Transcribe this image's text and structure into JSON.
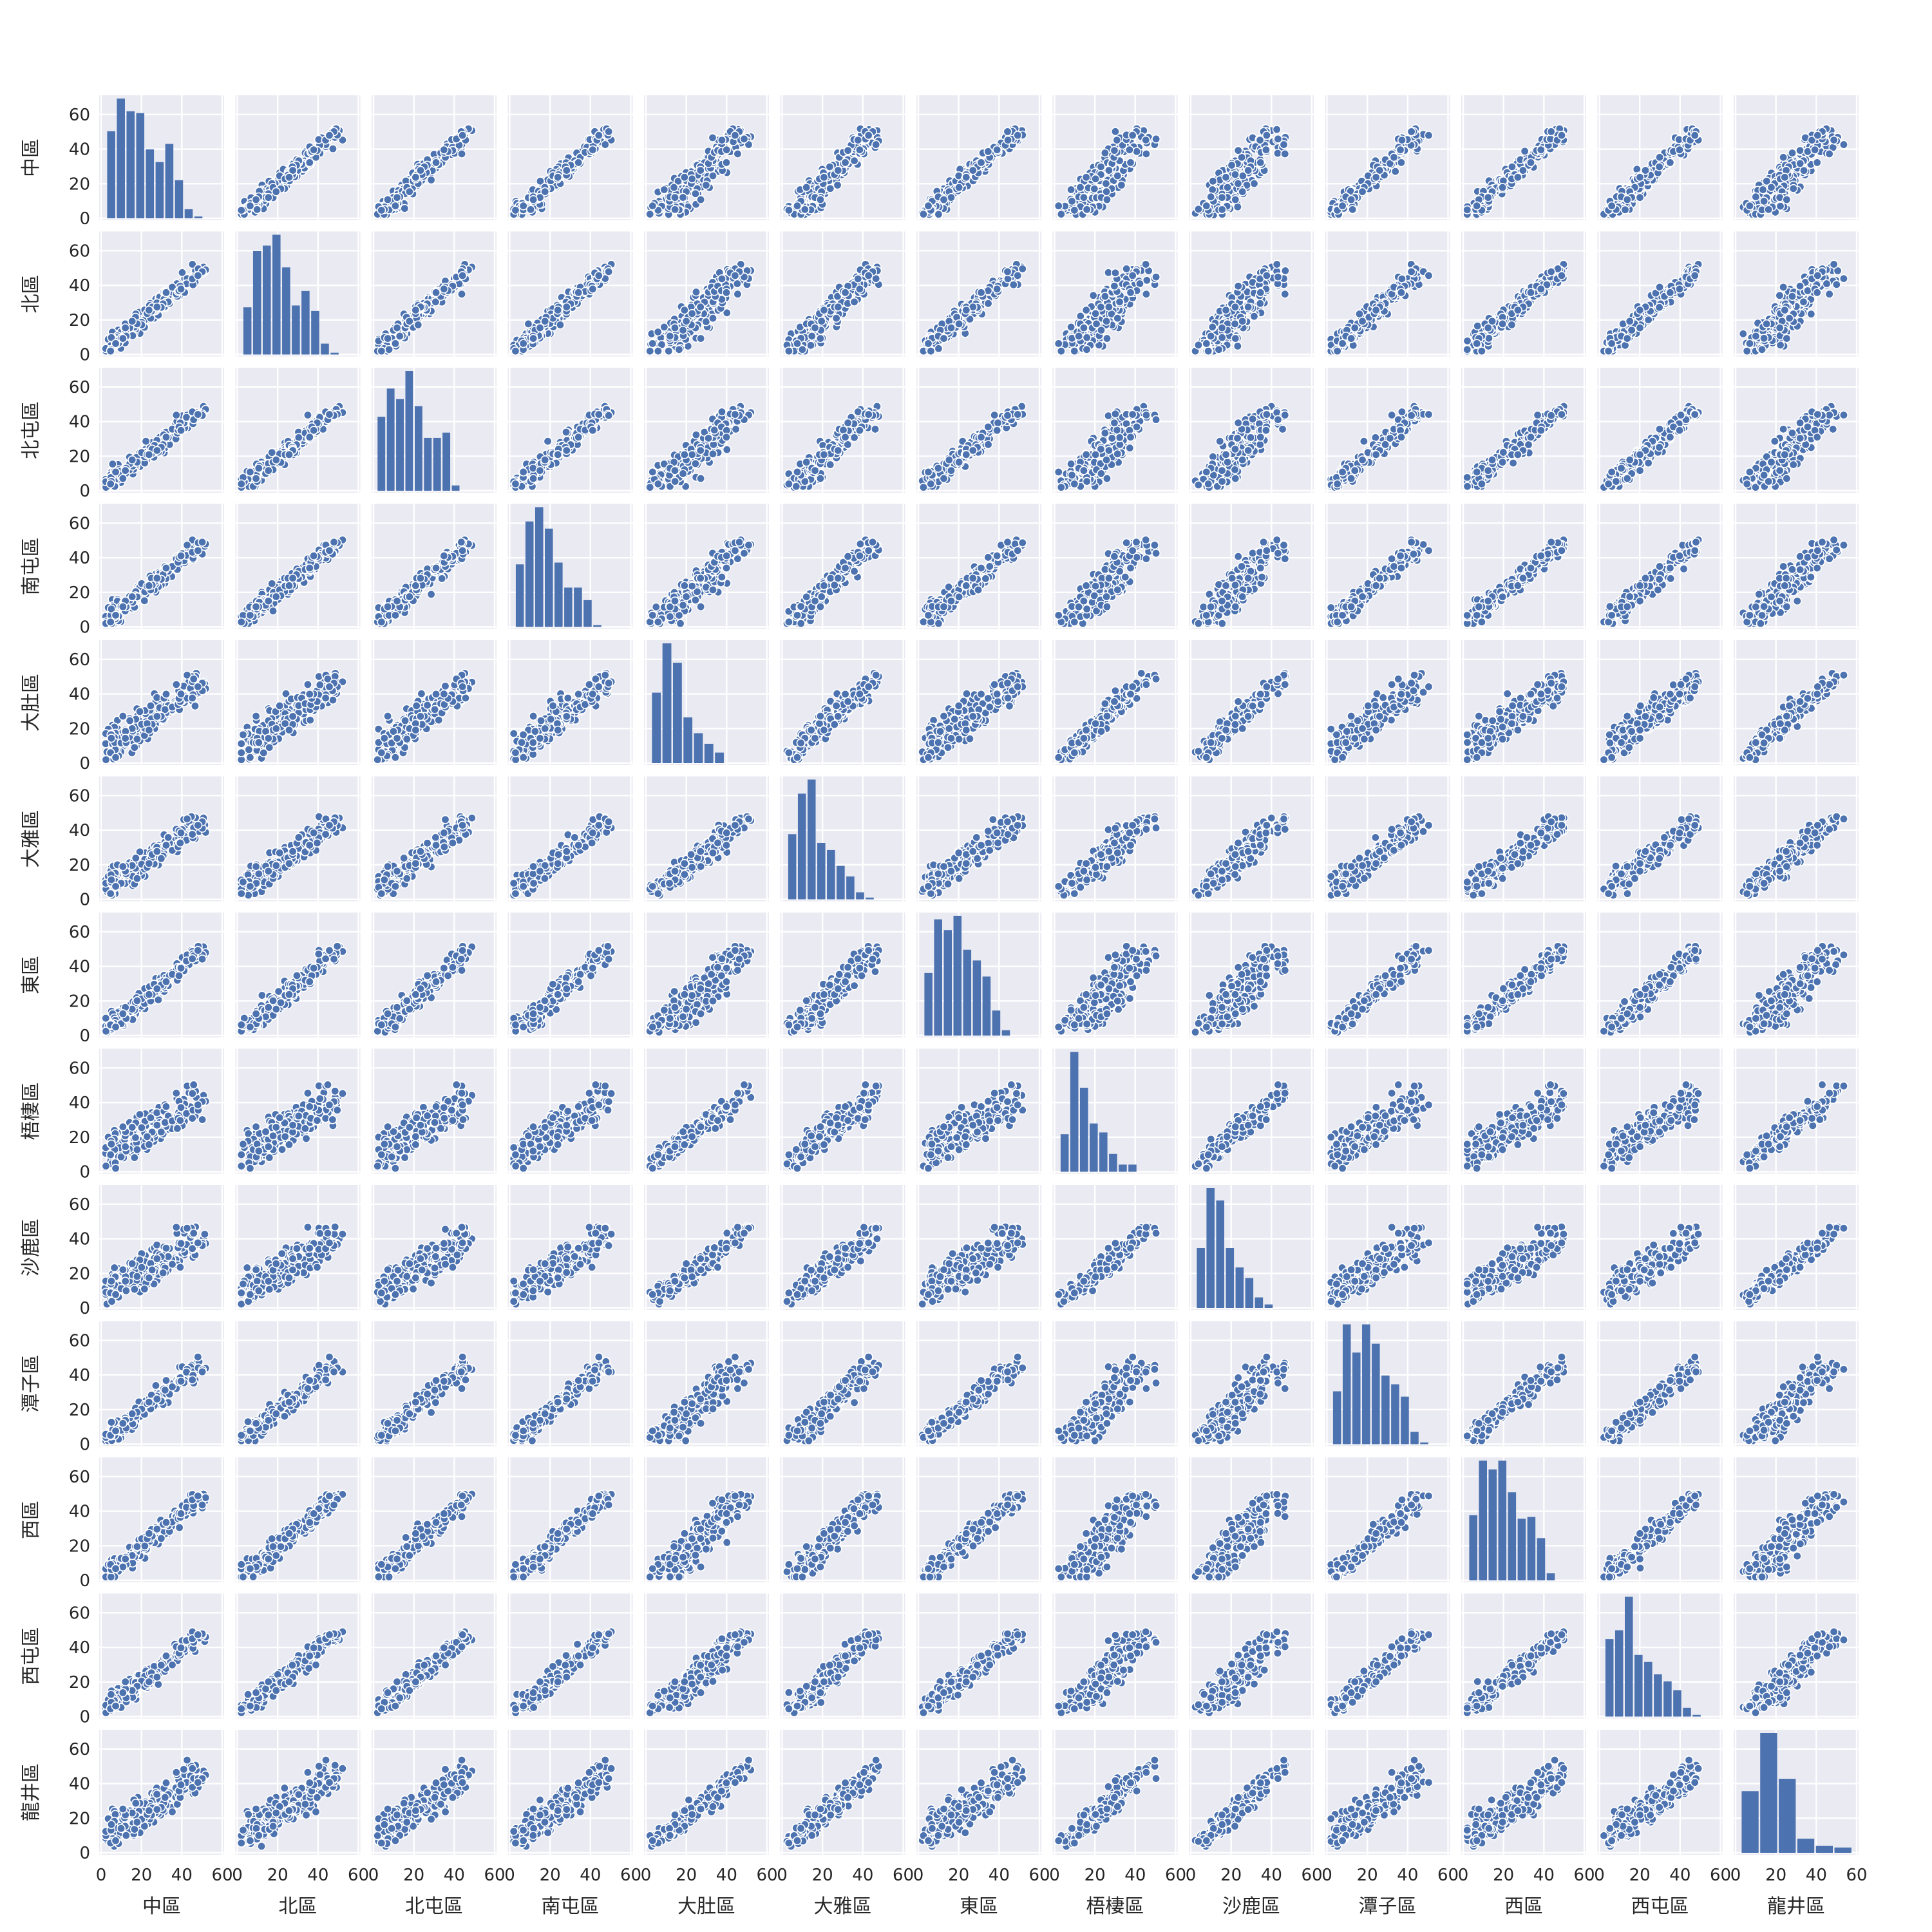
{
  "chart_data": {
    "type": "pairplot",
    "variables": [
      "中區",
      "北區",
      "北屯區",
      "南屯區",
      "大肚區",
      "大雅區",
      "東區",
      "梧棲區",
      "沙鹿區",
      "潭子區",
      "西區",
      "西屯區",
      "龍井區"
    ],
    "xlim": [
      0,
      60
    ],
    "ylim": [
      0,
      70
    ],
    "x_ticks": [
      0,
      20,
      40,
      60
    ],
    "y_ticks": [
      0,
      20,
      40,
      60
    ],
    "grid": true,
    "background": "#eaeaf2",
    "grid_color": "#ffffff",
    "marker_color": "#4c72b0",
    "marker_edge": "#ffffff",
    "diagonal": "histogram",
    "histograms": {
      "中區": {
        "edges": [
          3,
          7.8,
          12.6,
          17.4,
          22.2,
          27,
          31.8,
          36.6,
          41.4,
          46.2,
          51
        ],
        "counts": [
          48,
          66,
          59,
          58,
          38,
          31,
          41,
          21,
          5,
          1
        ]
      },
      "北區": {
        "edges": [
          3,
          7.8,
          12.6,
          17.4,
          22.2,
          27,
          31.8,
          36.6,
          41.4,
          46.2,
          51
        ],
        "counts": [
          26,
          57,
          60,
          66,
          48,
          27,
          35,
          24,
          6,
          1
        ]
      },
      "北屯區": {
        "edges": [
          2,
          6.6,
          11.2,
          15.8,
          20.4,
          25,
          29.6,
          34.2,
          38.8,
          43.4,
          48
        ],
        "counts": [
          42,
          58,
          52,
          68,
          48,
          30,
          30,
          33,
          3,
          0
        ]
      },
      "南屯區": {
        "edges": [
          3,
          7.8,
          12.6,
          17.4,
          22.2,
          27,
          31.8,
          36.6,
          41.4,
          46.2,
          51
        ],
        "counts": [
          35,
          59,
          67,
          55,
          36,
          22,
          22,
          15,
          1,
          0
        ]
      },
      "大肚區": {
        "edges": [
          3,
          8.2,
          13.4,
          18.6,
          23.8,
          29,
          34.2,
          39.4,
          44.6,
          49.8,
          55
        ],
        "counts": [
          40,
          68,
          57,
          26,
          17,
          11,
          6,
          0,
          0,
          0
        ]
      },
      "大雅區": {
        "edges": [
          3,
          7.8,
          12.6,
          17.4,
          22.2,
          27,
          31.8,
          36.6,
          41.4,
          46.2,
          51
        ],
        "counts": [
          37,
          60,
          68,
          32,
          28,
          19,
          13,
          4,
          1,
          0
        ]
      },
      "東區": {
        "edges": [
          3,
          7.8,
          12.6,
          17.4,
          22.2,
          27,
          31.8,
          36.6,
          41.4,
          46.2,
          51
        ],
        "counts": [
          35,
          65,
          59,
          67,
          48,
          42,
          33,
          14,
          3,
          0
        ]
      },
      "梧棲區": {
        "edges": [
          3,
          7.8,
          12.6,
          17.4,
          22.2,
          27,
          31.8,
          36.6,
          41.4,
          46.2,
          51
        ],
        "counts": [
          21,
          67,
          47,
          27,
          22,
          10,
          4,
          4,
          0,
          0
        ]
      },
      "沙鹿區": {
        "edges": [
          3,
          7.8,
          12.6,
          17.4,
          22.2,
          27,
          31.8,
          36.6,
          41.4,
          46.2,
          51
        ],
        "counts": [
          34,
          68,
          61,
          34,
          23,
          17,
          6,
          2,
          0,
          0
        ]
      },
      "潭子區": {
        "edges": [
          3,
          7.8,
          12.6,
          17.4,
          22.2,
          27,
          31.8,
          36.6,
          41.4,
          46.2,
          51
        ],
        "counts": [
          30,
          68,
          52,
          68,
          57,
          39,
          34,
          27,
          7,
          1
        ]
      },
      "西區": {
        "edges": [
          3,
          7.8,
          12.6,
          17.4,
          22.2,
          27,
          31.8,
          36.6,
          41.4,
          46.2,
          51
        ],
        "counts": [
          37,
          68,
          63,
          68,
          50,
          35,
          36,
          24,
          4,
          0
        ]
      },
      "西屯區": {
        "edges": [
          3,
          7.8,
          12.6,
          17.4,
          22.2,
          27,
          31.8,
          36.6,
          41.4,
          46.2,
          51
        ],
        "counts": [
          44,
          49,
          68,
          35,
          31,
          24,
          20,
          15,
          5,
          1
        ]
      },
      "龍井區": {
        "edges": [
          3,
          12.2,
          21.4,
          30.6,
          39.8,
          49,
          58.2
        ],
        "counts": [
          35,
          68,
          42,
          8,
          4,
          3
        ]
      }
    },
    "scatter_points": "≈200 shared samples per district (value range 2–57), pairwise strongly positively correlated"
  }
}
